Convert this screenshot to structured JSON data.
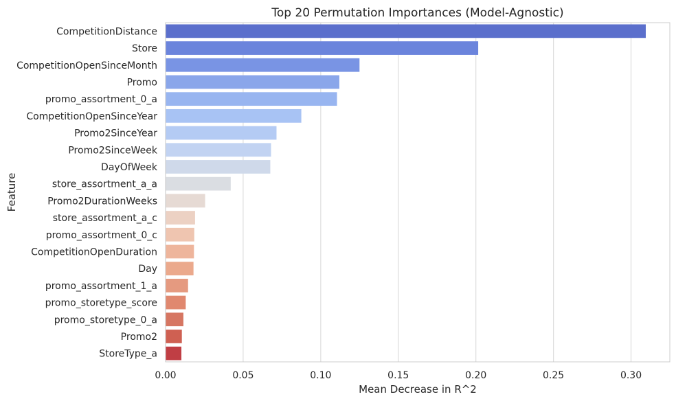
{
  "chart_data": {
    "type": "bar",
    "orientation": "horizontal",
    "title": "Top 20 Permutation Importances (Model-Agnostic)",
    "xlabel": "Mean Decrease in R^2",
    "ylabel": "Feature",
    "xlim": [
      0,
      0.325
    ],
    "xticks": [
      0.0,
      0.05,
      0.1,
      0.15,
      0.2,
      0.25,
      0.3
    ],
    "xtick_labels": [
      "0.00",
      "0.05",
      "0.10",
      "0.15",
      "0.20",
      "0.25",
      "0.30"
    ],
    "grid": "vertical",
    "categories": [
      "CompetitionDistance",
      "Store",
      "CompetitionOpenSinceMonth",
      "Promo",
      "promo_assortment_0_a",
      "CompetitionOpenSinceYear",
      "Promo2SinceYear",
      "Promo2SinceWeek",
      "DayOfWeek",
      "store_assortment_a_a",
      "Promo2DurationWeeks",
      "store_assortment_a_c",
      "promo_assortment_0_c",
      "CompetitionOpenDuration",
      "Day",
      "promo_assortment_1_a",
      "promo_storetype_score",
      "promo_storetype_0_a",
      "Promo2",
      "StoreType_a"
    ],
    "values": [
      0.3095,
      0.2015,
      0.125,
      0.112,
      0.1105,
      0.0875,
      0.0715,
      0.068,
      0.0675,
      0.042,
      0.0255,
      0.019,
      0.0185,
      0.0183,
      0.018,
      0.0145,
      0.013,
      0.0115,
      0.0105,
      0.0102
    ],
    "colors": [
      "#5b6fcc",
      "#6b84dc",
      "#7994e4",
      "#8aa6ea",
      "#98b5f0",
      "#a8c3f4",
      "#b4cbf4",
      "#c2d3f2",
      "#cfd9ea",
      "#dadde2",
      "#e6dad4",
      "#ecd1c3",
      "#efc5b0",
      "#eeb59c",
      "#eba98c",
      "#e59a80",
      "#e0886f",
      "#d67662",
      "#cf6052",
      "#c03e44"
    ]
  }
}
